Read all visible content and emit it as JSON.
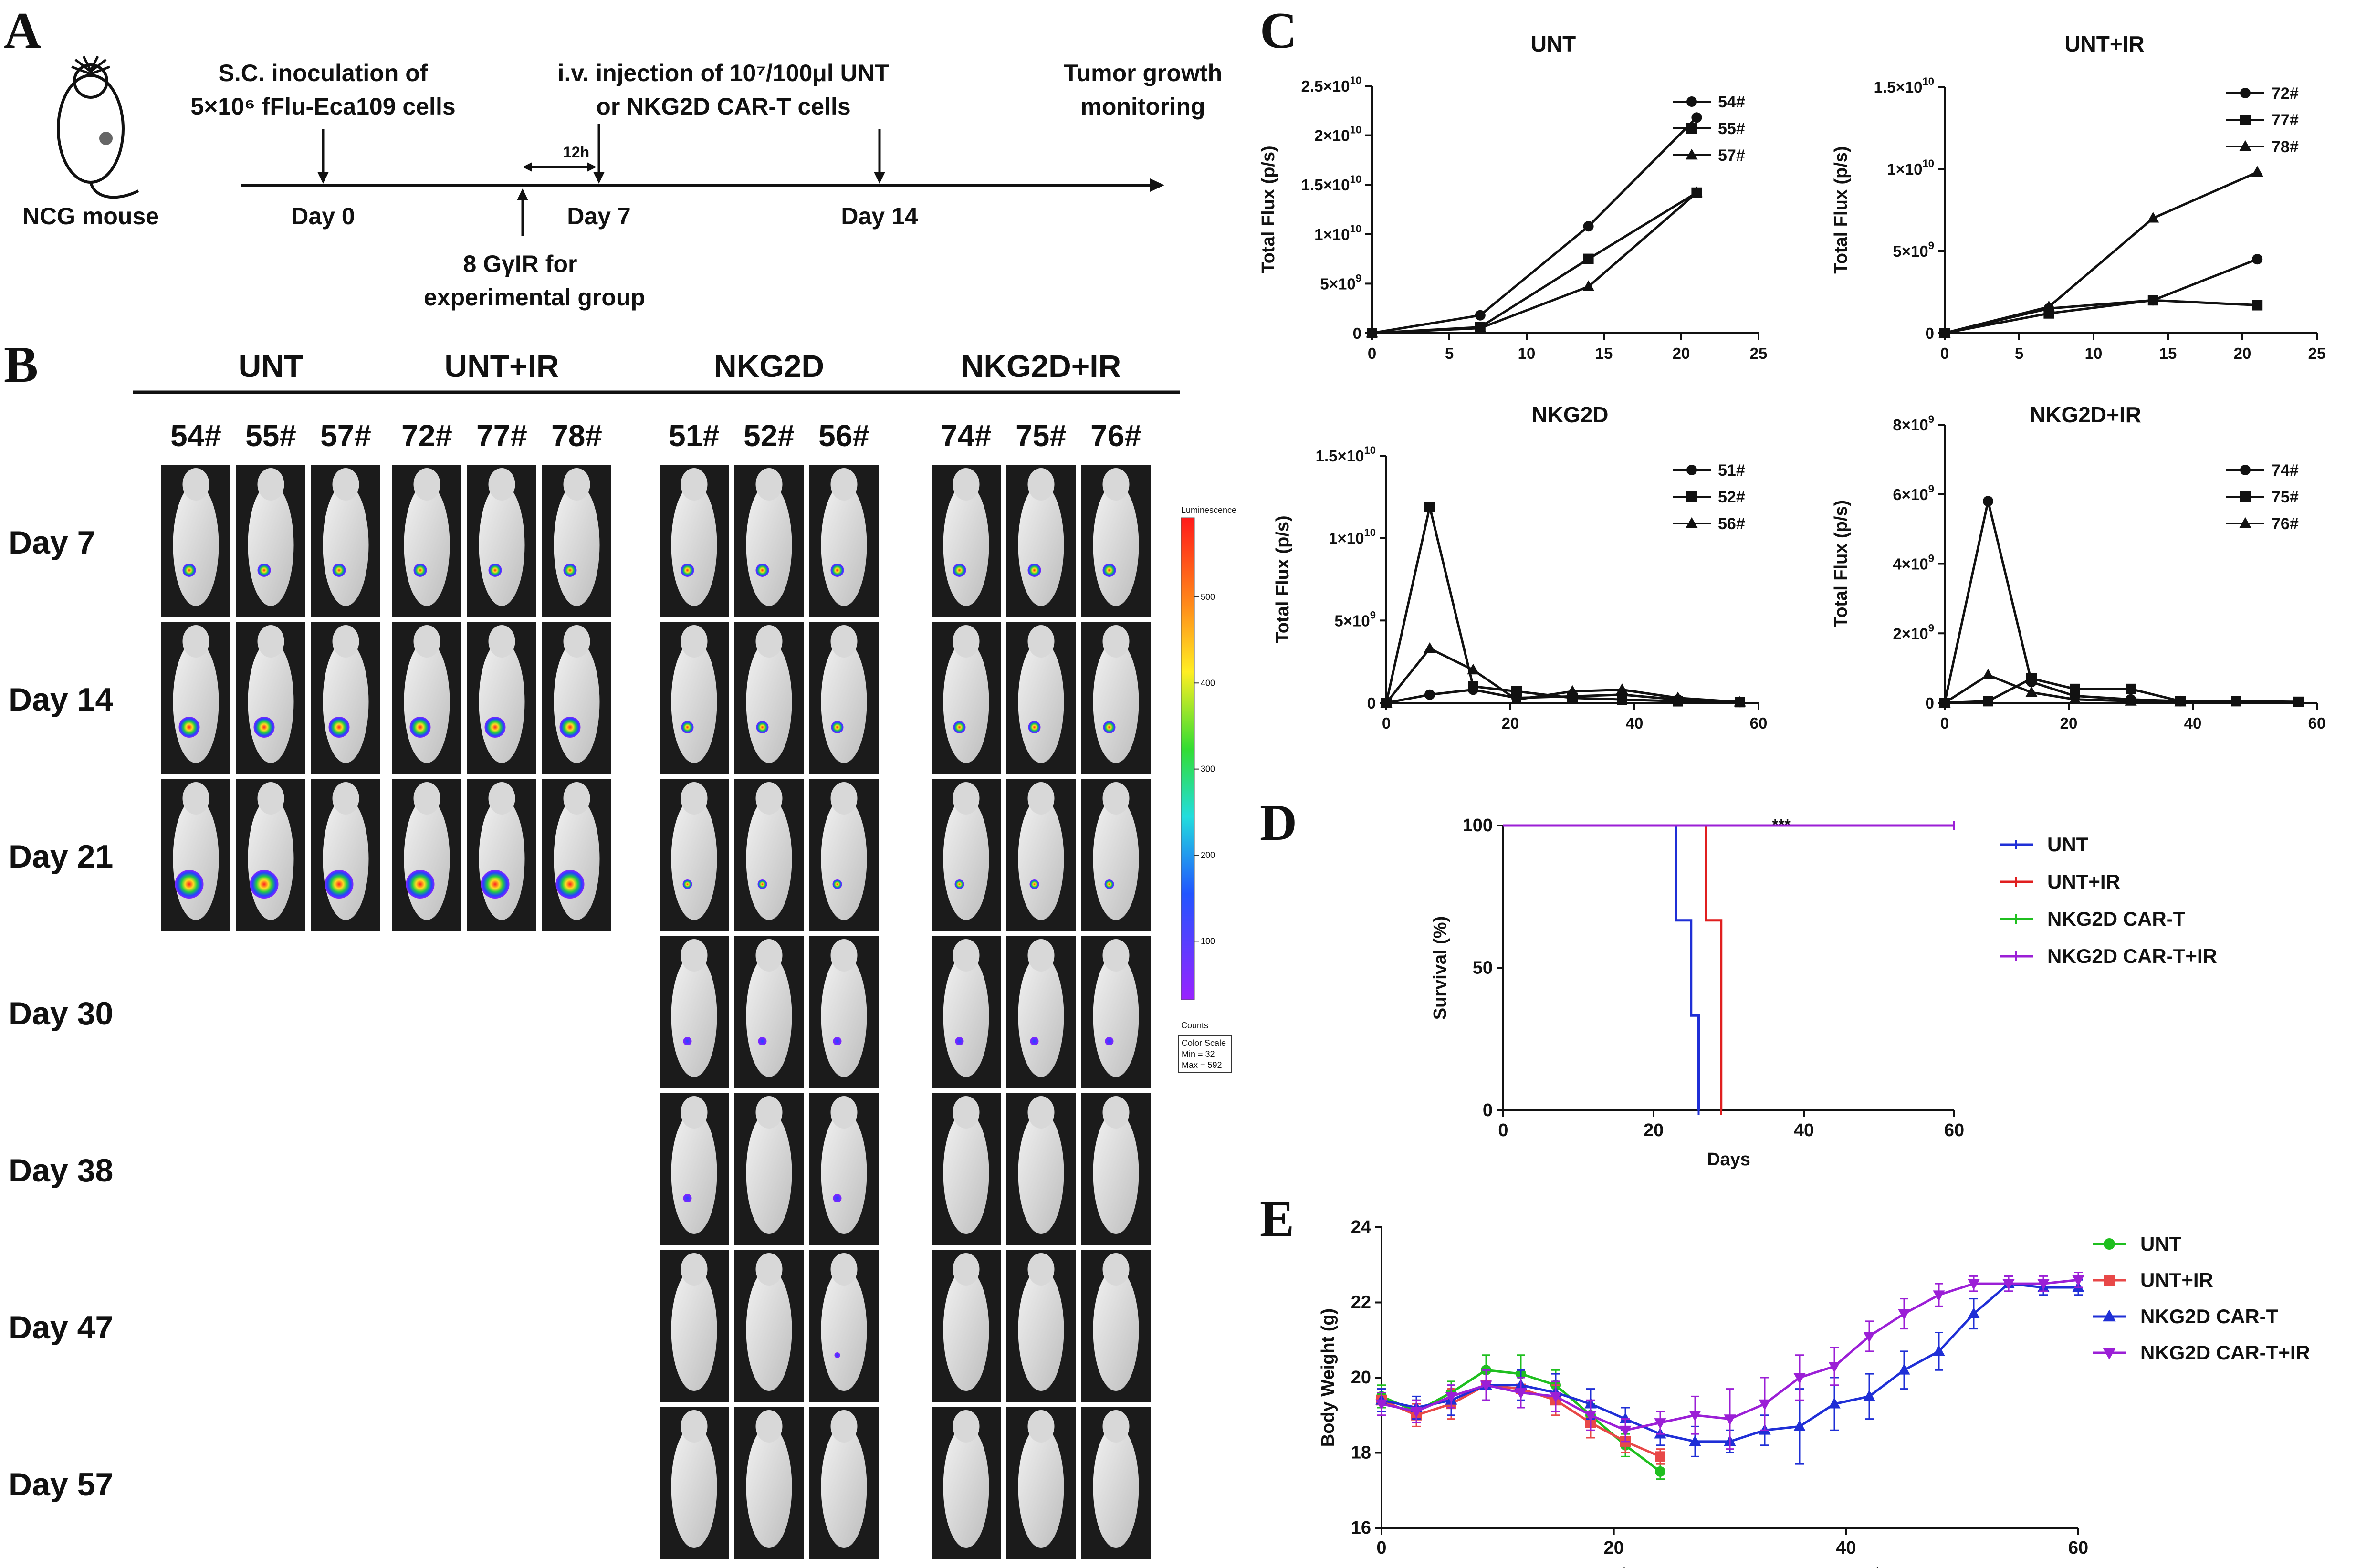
{
  "panels": {
    "A": "A",
    "B": "B",
    "C": "C",
    "D": "D",
    "E": "E"
  },
  "timeline": {
    "mouse_label": "NCG mouse",
    "inoculation_line1": "S.C. inoculation of",
    "inoculation_line2": "5×10⁶ fFlu-Eca109 cells",
    "injection_line1": "i.v. injection of 10⁷/100μl UNT",
    "injection_line2": "or NKG2D CAR-T cells",
    "monitor_line1": "Tumor growth",
    "monitor_line2": "monitoring",
    "interval": "12h",
    "day0": "Day 0",
    "day7": "Day 7",
    "day14": "Day 14",
    "ir_line1": "8 GγIR for",
    "ir_line2": "experimental group"
  },
  "imaging": {
    "groups": [
      {
        "name": "UNT",
        "ids": [
          "54#",
          "55#",
          "57#"
        ],
        "days_imaged": 3
      },
      {
        "name": "UNT+IR",
        "ids": [
          "72#",
          "77#",
          "78#"
        ],
        "days_imaged": 3
      },
      {
        "name": "NKG2D",
        "ids": [
          "51#",
          "52#",
          "56#"
        ],
        "days_imaged": 7
      },
      {
        "name": "NKG2D+IR",
        "ids": [
          "74#",
          "75#",
          "76#"
        ],
        "days_imaged": 7
      }
    ],
    "days": [
      "Day 7",
      "Day 14",
      "Day 21",
      "Day 30",
      "Day 38",
      "Day 47",
      "Day 57"
    ],
    "colorbar": {
      "title": "Luminescence",
      "ticks": [
        "500",
        "400",
        "300",
        "200",
        "100"
      ],
      "unit": "Counts",
      "scale_line1": "Color Scale",
      "scale_line2": "Min = 32",
      "scale_line3": "Max = 592"
    }
  },
  "chart_data": [
    {
      "id": "C1",
      "type": "line",
      "title": "UNT",
      "ylabel": "Total Flux (p/s)",
      "xlabel": "",
      "xlim": [
        0,
        25
      ],
      "ylim": [
        0,
        25000000000
      ],
      "xticks": [
        "0",
        "5",
        "10",
        "15",
        "20",
        "25"
      ],
      "yticks": [
        {
          "b": "0",
          "e": ""
        },
        {
          "b": "5×10",
          "e": "9"
        },
        {
          "b": "1×10",
          "e": "10"
        },
        {
          "b": "1.5×10",
          "e": "10"
        },
        {
          "b": "2×10",
          "e": "10"
        },
        {
          "b": "2.5×10",
          "e": "10"
        }
      ],
      "series": [
        {
          "name": "54#",
          "marker": "circle",
          "x": [
            0,
            7,
            14,
            21
          ],
          "y": [
            0,
            1800000000,
            10800000000,
            21800000000
          ]
        },
        {
          "name": "55#",
          "marker": "square",
          "x": [
            0,
            7,
            14,
            21
          ],
          "y": [
            0,
            600000000,
            7500000000,
            14200000000
          ]
        },
        {
          "name": "57#",
          "marker": "triangle",
          "x": [
            0,
            7,
            14,
            21
          ],
          "y": [
            0,
            500000000,
            4700000000,
            14200000000
          ]
        }
      ]
    },
    {
      "id": "C2",
      "type": "line",
      "title": "UNT+IR",
      "ylabel": "Total Flux (p/s)",
      "xlabel": "",
      "xlim": [
        0,
        25
      ],
      "ylim": [
        0,
        15000000000
      ],
      "xticks": [
        "0",
        "5",
        "10",
        "15",
        "20",
        "25"
      ],
      "yticks": [
        {
          "b": "0",
          "e": ""
        },
        {
          "b": "5×10",
          "e": "9"
        },
        {
          "b": "1×10",
          "e": "10"
        },
        {
          "b": "1.5×10",
          "e": "10"
        }
      ],
      "series": [
        {
          "name": "72#",
          "marker": "circle",
          "x": [
            0,
            7,
            14,
            21
          ],
          "y": [
            0,
            1500000000,
            2000000000,
            4500000000
          ]
        },
        {
          "name": "77#",
          "marker": "square",
          "x": [
            0,
            7,
            14,
            21
          ],
          "y": [
            0,
            1200000000,
            2000000000,
            1700000000
          ]
        },
        {
          "name": "78#",
          "marker": "triangle",
          "x": [
            0,
            7,
            14,
            21
          ],
          "y": [
            0,
            1600000000,
            7000000000,
            9800000000
          ]
        }
      ]
    },
    {
      "id": "C3",
      "type": "line",
      "title": "NKG2D",
      "ylabel": "Total Flux (p/s)",
      "xlabel": "",
      "xlim": [
        0,
        60
      ],
      "ylim": [
        0,
        15000000000
      ],
      "xticks": [
        "0",
        "20",
        "40",
        "60"
      ],
      "yticks": [
        {
          "b": "0",
          "e": ""
        },
        {
          "b": "5×10",
          "e": "9"
        },
        {
          "b": "1×10",
          "e": "10"
        },
        {
          "b": "1.5×10",
          "e": "10"
        }
      ],
      "series": [
        {
          "name": "51#",
          "marker": "circle",
          "x": [
            0,
            7,
            14,
            21,
            30,
            38,
            47,
            57
          ],
          "y": [
            0,
            500000000,
            800000000,
            300000000,
            400000000,
            500000000,
            200000000,
            50000000
          ]
        },
        {
          "name": "52#",
          "marker": "square",
          "x": [
            0,
            7,
            14,
            21,
            30,
            38,
            47,
            57
          ],
          "y": [
            0,
            11900000000,
            1000000000,
            700000000,
            300000000,
            200000000,
            100000000,
            50000000
          ]
        },
        {
          "name": "56#",
          "marker": "triangle",
          "x": [
            0,
            7,
            14,
            21,
            30,
            38,
            47,
            57
          ],
          "y": [
            0,
            3300000000,
            2000000000,
            200000000,
            700000000,
            800000000,
            300000000,
            50000000
          ]
        }
      ]
    },
    {
      "id": "C4",
      "type": "line",
      "title": "NKG2D+IR",
      "ylabel": "Total Flux (p/s)",
      "xlabel": "",
      "xlim": [
        0,
        60
      ],
      "ylim": [
        0,
        8000000000
      ],
      "xticks": [
        "0",
        "20",
        "40",
        "60"
      ],
      "yticks": [
        {
          "b": "0",
          "e": ""
        },
        {
          "b": "2×10",
          "e": "9"
        },
        {
          "b": "4×10",
          "e": "9"
        },
        {
          "b": "6×10",
          "e": "9"
        },
        {
          "b": "8×10",
          "e": "9"
        }
      ],
      "series": [
        {
          "name": "74#",
          "marker": "circle",
          "x": [
            0,
            7,
            14,
            21,
            30,
            38
          ],
          "y": [
            0,
            5800000000,
            600000000,
            200000000,
            100000000,
            50000000
          ]
        },
        {
          "name": "75#",
          "marker": "square",
          "x": [
            0,
            7,
            14,
            21,
            30,
            38,
            47,
            57
          ],
          "y": [
            0,
            50000000,
            700000000,
            400000000,
            400000000,
            50000000,
            50000000,
            30000000
          ]
        },
        {
          "name": "76#",
          "marker": "triangle",
          "x": [
            0,
            7,
            14,
            21,
            30,
            38
          ],
          "y": [
            0,
            800000000,
            300000000,
            100000000,
            50000000,
            30000000
          ]
        }
      ]
    },
    {
      "id": "D",
      "type": "line",
      "step": true,
      "title": "",
      "ylabel": "Survival (%)",
      "xlabel": "Days",
      "xlim": [
        0,
        60
      ],
      "ylim": [
        0,
        100
      ],
      "xticks": [
        "0",
        "20",
        "40",
        "60"
      ],
      "yticks": [
        {
          "b": "0",
          "e": ""
        },
        {
          "b": "50",
          "e": ""
        },
        {
          "b": "100",
          "e": ""
        }
      ],
      "annotation": "***",
      "series": [
        {
          "name": "UNT",
          "color": "#1f2fd6",
          "x": [
            0,
            23,
            25,
            26,
            26
          ],
          "y": [
            100,
            66.7,
            33.3,
            0,
            0
          ]
        },
        {
          "name": "UNT+IR",
          "color": "#e01f1f",
          "x": [
            0,
            27,
            29
          ],
          "y": [
            100,
            66.7,
            0
          ]
        },
        {
          "name": "NKG2D CAR-T",
          "color": "#1fbf1f",
          "x": [
            0,
            60
          ],
          "y": [
            100,
            100
          ]
        },
        {
          "name": "NKG2D CAR-T+IR",
          "color": "#9b1fd6",
          "x": [
            0,
            60
          ],
          "y": [
            100,
            100
          ]
        }
      ]
    },
    {
      "id": "E",
      "type": "line",
      "title": "",
      "ylabel": "Body Weight (g)",
      "xlabel": "Time（days after tumor inplantation）",
      "xlim": [
        0,
        60
      ],
      "ylim": [
        16,
        24
      ],
      "xticks": [
        "0",
        "20",
        "40",
        "60"
      ],
      "yticks": [
        {
          "b": "16",
          "e": ""
        },
        {
          "b": "18",
          "e": ""
        },
        {
          "b": "20",
          "e": ""
        },
        {
          "b": "22",
          "e": ""
        },
        {
          "b": "24",
          "e": ""
        }
      ],
      "series": [
        {
          "name": "UNT",
          "color": "#1fbf1f",
          "marker": "circle",
          "x": [
            0,
            3,
            6,
            9,
            12,
            15,
            18,
            21,
            24
          ],
          "y": [
            19.5,
            19.1,
            19.6,
            20.2,
            20.1,
            19.8,
            19.0,
            18.2,
            17.5
          ],
          "err": [
            0.3,
            0.3,
            0.3,
            0.4,
            0.5,
            0.4,
            0.3,
            0.3,
            0.2
          ]
        },
        {
          "name": "UNT+IR",
          "color": "#e84848",
          "marker": "square",
          "x": [
            0,
            3,
            6,
            9,
            12,
            15,
            18,
            21,
            24
          ],
          "y": [
            19.4,
            19.0,
            19.3,
            19.8,
            19.7,
            19.4,
            18.8,
            18.3,
            17.9
          ],
          "err": [
            0.3,
            0.3,
            0.4,
            0.4,
            0.5,
            0.4,
            0.4,
            0.3,
            0.2
          ]
        },
        {
          "name": "NKG2D CAR-T",
          "color": "#1f2fd6",
          "marker": "triangle",
          "x": [
            0,
            3,
            6,
            9,
            12,
            15,
            18,
            21,
            24,
            27,
            30,
            33,
            36,
            39,
            42,
            45,
            48,
            51,
            54,
            57,
            60
          ],
          "y": [
            19.4,
            19.2,
            19.4,
            19.8,
            19.8,
            19.6,
            19.3,
            18.9,
            18.5,
            18.3,
            18.3,
            18.6,
            18.7,
            19.3,
            19.5,
            20.2,
            20.7,
            21.7,
            22.5,
            22.4,
            22.4
          ],
          "err": [
            0.3,
            0.3,
            0.4,
            0.4,
            0.4,
            0.5,
            0.4,
            0.3,
            0.3,
            0.4,
            0.3,
            0.4,
            1.0,
            0.7,
            0.6,
            0.5,
            0.5,
            0.4,
            0.2,
            0.2,
            0.2
          ]
        },
        {
          "name": "NKG2D CAR-T+IR",
          "color": "#9b1fd6",
          "marker": "invtriangle",
          "x": [
            0,
            3,
            6,
            9,
            12,
            15,
            18,
            21,
            24,
            27,
            30,
            33,
            36,
            39,
            42,
            45,
            48,
            51,
            54,
            57,
            60
          ],
          "y": [
            19.3,
            19.1,
            19.5,
            19.8,
            19.6,
            19.5,
            19.0,
            18.6,
            18.8,
            19.0,
            18.9,
            19.3,
            20.0,
            20.3,
            21.1,
            21.7,
            22.2,
            22.5,
            22.5,
            22.5,
            22.6
          ],
          "err": [
            0.3,
            0.3,
            0.3,
            0.4,
            0.4,
            0.4,
            0.4,
            0.3,
            0.3,
            0.5,
            0.8,
            0.7,
            0.6,
            0.5,
            0.4,
            0.4,
            0.3,
            0.2,
            0.2,
            0.2,
            0.2
          ]
        }
      ]
    }
  ]
}
